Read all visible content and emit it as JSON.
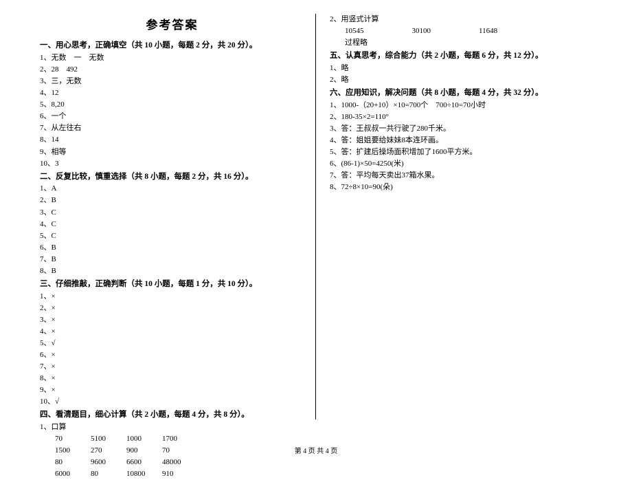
{
  "title": "参考答案",
  "footer": "第 4 页 共 4 页",
  "sections": {
    "s1": {
      "head": "一、用心思考，正确填空（共 10 小题，每题 2 分，共 20 分）。",
      "items": [
        "1、无数　一　无数",
        "2、28　492",
        "3、三，无数",
        "4、12",
        "5、8,20",
        "6、一个",
        "7、从左往右",
        "8、14",
        "9、相等",
        "10、3"
      ]
    },
    "s2": {
      "head": "二、反复比较，慎重选择（共 8 小题，每题 2 分，共 16 分）。",
      "items": [
        "1、A",
        "2、B",
        "3、C",
        "4、C",
        "5、C",
        "6、B",
        "7、B",
        "8、B"
      ]
    },
    "s3": {
      "head": "三、仔细推敲，正确判断（共 10 小题，每题 1 分，共 10 分）。",
      "items": [
        "1、×",
        "2、×",
        "3、×",
        "4、×",
        "5、√",
        "6、×",
        "7、×",
        "8、×",
        "9、×",
        "10、√"
      ]
    },
    "s4": {
      "head": "四、看清题目，细心计算（共 2 小题，每题 4 分，共 8 分）。",
      "q1label": "1、口算",
      "q1rows": [
        [
          "70",
          "5100",
          "1000",
          "1700"
        ],
        [
          "1500",
          "270",
          "900",
          "70"
        ],
        [
          "80",
          "9600",
          "6600",
          "48000"
        ],
        [
          "6000",
          "80",
          "10800",
          "910"
        ]
      ],
      "q2label": "2、用竖式计算",
      "q2row": [
        "10545",
        "30100",
        "11648"
      ],
      "q2note": "过程略"
    },
    "s5": {
      "head": "五、认真思考，综合能力（共 2 小题，每题 6 分，共 12 分）。",
      "items": [
        "1、略",
        "2、略"
      ]
    },
    "s6": {
      "head": "六、应用知识，解决问题（共 8 小题，每题 4 分，共 32 分）。",
      "items": [
        "1、1000-（20+10）×10=700个　700÷10=70小时",
        "2、180-35×2=110°",
        "3、答：王叔叔一共行驶了280千米。",
        "4、答：姐姐要给妹妹8本连环画。",
        "5、答：扩建后操场面积增加了1600平方米。",
        "6、(86-1)×50=4250(米)",
        "7、答：平均每天卖出37箱水果。",
        "8、72÷8×10=90(朵)"
      ]
    }
  }
}
